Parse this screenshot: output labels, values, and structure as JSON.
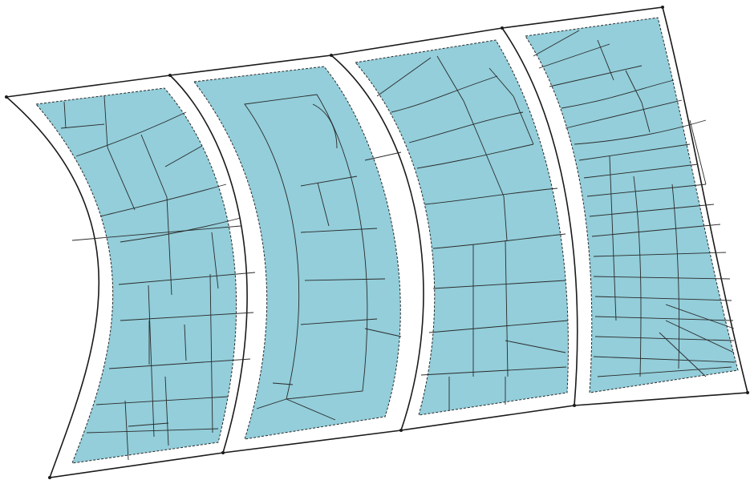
{
  "colors": {
    "panel_fill": "#93CEDA",
    "outline": "#1a1a1a",
    "seam": "#2a2a2a",
    "background": "#ffffff"
  },
  "panel_count": 4,
  "panels": [
    {
      "id": "panel-1",
      "seam_count": 24
    },
    {
      "id": "panel-2",
      "seam_count": 12
    },
    {
      "id": "panel-3",
      "seam_count": 20
    },
    {
      "id": "panel-4",
      "seam_count": 28
    }
  ]
}
